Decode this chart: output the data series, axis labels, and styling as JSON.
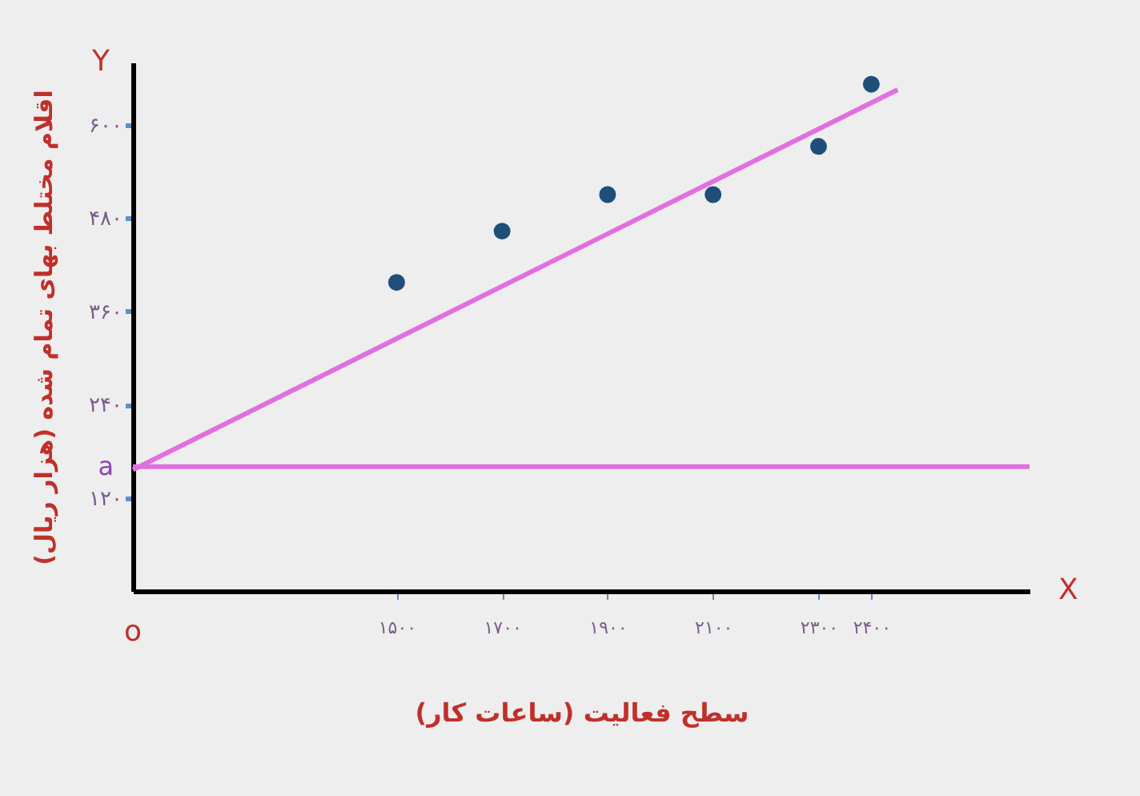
{
  "chart_data": {
    "type": "scatter",
    "xlabel": "سطح فعالیت (ساعات کار)",
    "ylabel": "اقلام مختلط بهای تمام شده (هزار ریال)",
    "annotations": [
      "X",
      "Y",
      "o"
    ],
    "xlim": [
      1000,
      2700
    ],
    "xticks": [
      {
        "value": 1500,
        "label": "۱۵۰۰"
      },
      {
        "value": 1700,
        "label": "۱۷۰۰"
      },
      {
        "value": 1900,
        "label": "۱۹۰۰"
      },
      {
        "value": 2100,
        "label": "۲۱۰۰"
      },
      {
        "value": 2300,
        "label": "۲۳۰۰"
      },
      {
        "value": 2400,
        "label": "۲۴۰۰"
      }
    ],
    "ylim": [
      0,
      680
    ],
    "yticks": [
      {
        "value": 120,
        "label": "۱۲۰"
      },
      {
        "value": 240,
        "label": "۲۴۰"
      },
      {
        "value": 360,
        "label": "۳۶۰"
      },
      {
        "value": 480,
        "label": "۴۸۰"
      },
      {
        "value": 600,
        "label": "۶۰۰"
      }
    ],
    "series": [
      {
        "marker": "circle",
        "color": "#1f4e79",
        "x": [
          1500,
          1700,
          1900,
          2100,
          2300,
          2400
        ],
        "values": [
          397,
          463,
          510,
          510,
          572,
          652
        ]
      },
      {
        "type": "line",
        "color": "#e070e0",
        "x": [
          1000,
          2450
        ],
        "values": [
          156,
          645
        ]
      }
    ],
    "ref_lines": [
      {
        "axis": "y",
        "value": 160,
        "label": "a",
        "color": "#e070e0"
      }
    ],
    "grid": false
  }
}
